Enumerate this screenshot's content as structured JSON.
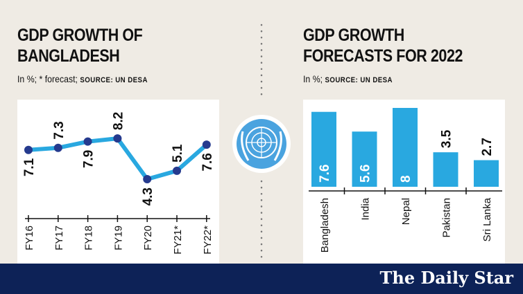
{
  "left": {
    "title_line1": "GDP GROWTH OF",
    "title_line2": "BANGLADESH",
    "subtitle": "In %; * forecast;",
    "source": "SOURCE: UN DESA"
  },
  "right": {
    "title_line1": "GDP GROWTH",
    "title_line2": "FORECASTS FOR 2022",
    "subtitle": "In %;",
    "source": "SOURCE: UN DESA"
  },
  "footer": {
    "logo": "The Daily Star"
  },
  "colors": {
    "background": "#efebe4",
    "line": "#29a8e0",
    "marker": "#253a8e",
    "bar": "#29a8e0",
    "footer": "#0d2257"
  },
  "chart_data": [
    {
      "type": "line",
      "categories": [
        "FY16",
        "FY17",
        "FY18",
        "FY19",
        "FY20",
        "FY21*",
        "FY22*"
      ],
      "values": [
        7.1,
        7.3,
        7.9,
        8.2,
        4.3,
        5.1,
        7.6
      ],
      "labels": [
        "7.1",
        "7.3",
        "7.9",
        "8.2",
        "4.3",
        "5.1",
        "7.6"
      ],
      "grid": false
    },
    {
      "type": "bar",
      "categories": [
        "Bangladesh",
        "India",
        "Nepal",
        "Pakistan",
        "Sri Lanka"
      ],
      "values": [
        7.6,
        5.6,
        8,
        3.5,
        2.7
      ],
      "labels": [
        "7.6",
        "5.6",
        "8",
        "3.5",
        "2.7"
      ],
      "grid": false
    }
  ]
}
